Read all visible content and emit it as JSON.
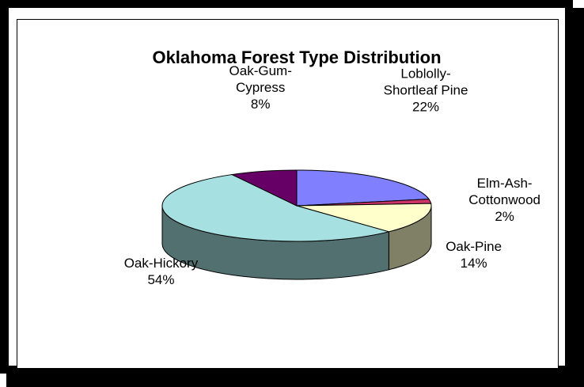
{
  "chart_data": {
    "type": "pie",
    "title": "Oklahoma Forest Type Distribution",
    "slices": [
      {
        "label_lines": [
          "Loblolly-",
          "Shortleaf Pine"
        ],
        "pct_label": "22%",
        "value": 22,
        "color": "#8080ff"
      },
      {
        "label_lines": [
          "Elm-Ash-",
          "Cottonwood"
        ],
        "pct_label": "2%",
        "value": 2,
        "color": "#cc3366"
      },
      {
        "label_lines": [
          "Oak-Pine"
        ],
        "pct_label": "14%",
        "value": 14,
        "color": "#ffffcc"
      },
      {
        "label_lines": [
          "Oak-Hickory"
        ],
        "pct_label": "54%",
        "value": 54,
        "color": "#a6e0e0"
      },
      {
        "label_lines": [
          "Oak-Gum-",
          "Cypress"
        ],
        "pct_label": "8%",
        "value": 8,
        "color": "#660066"
      }
    ],
    "style": "3d-pie",
    "legend": "none"
  }
}
